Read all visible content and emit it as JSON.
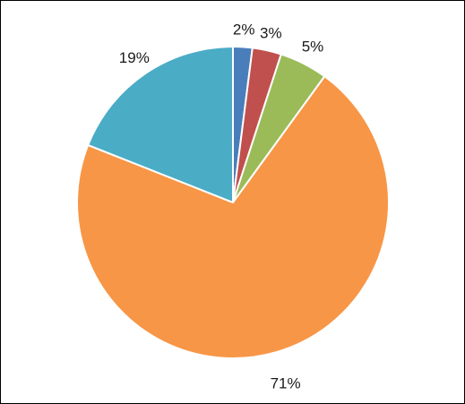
{
  "chart_data": {
    "type": "pie",
    "title": "",
    "legend": "none",
    "slices": [
      {
        "label": "2%",
        "value": 2,
        "color": "#4a7ebb"
      },
      {
        "label": "3%",
        "value": 3,
        "color": "#c0504d"
      },
      {
        "label": "5%",
        "value": 5,
        "color": "#9bbb59"
      },
      {
        "label": "71%",
        "value": 71,
        "color": "#f79646"
      },
      {
        "label": "19%",
        "value": 19,
        "color": "#4bacc6"
      }
    ]
  }
}
